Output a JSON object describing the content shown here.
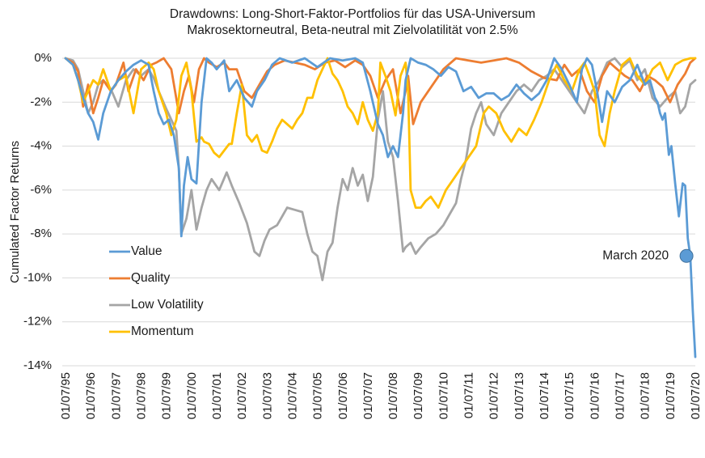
{
  "chart_data": {
    "type": "line",
    "title": "Drawdowns: Long-Short-Faktor-Portfolios für das USA-Universum",
    "subtitle": "Makrosektorneutral, Beta-neutral mit Zielvolatilität von 2.5%",
    "xlabel": "",
    "ylabel": "Cumulated Factor Returns",
    "ylim": [
      -14,
      0
    ],
    "yticks": [
      0,
      -2,
      -4,
      -6,
      -8,
      -10,
      -12,
      -14
    ],
    "ytick_labels": [
      "0%",
      "-2%",
      "-4%",
      "-6%",
      "-8%",
      "-10%",
      "-12%",
      "-14%"
    ],
    "xlim": [
      1995.5,
      2020.5
    ],
    "xtick_values": [
      1995.5,
      1996.5,
      1997.5,
      1998.5,
      1999.5,
      2000.5,
      2001.5,
      2002.5,
      2003.5,
      2004.5,
      2005.5,
      2006.5,
      2007.5,
      2008.5,
      2009.5,
      2010.5,
      2011.5,
      2012.5,
      2013.5,
      2014.5,
      2015.5,
      2016.5,
      2017.5,
      2018.5,
      2019.5,
      2020.5
    ],
    "xtick_labels": [
      "01/07/95",
      "01/07/96",
      "01/07/97",
      "01/07/98",
      "01/07/99",
      "01/07/00",
      "01/07/01",
      "01/07/02",
      "01/07/03",
      "01/07/04",
      "01/07/05",
      "01/07/06",
      "01/07/07",
      "01/07/08",
      "01/07/09",
      "01/07/10",
      "01/07/11",
      "01/07/12",
      "01/07/13",
      "01/07/14",
      "01/07/15",
      "01/07/16",
      "01/07/17",
      "01/07/18",
      "01/07/19",
      "01/07/20"
    ],
    "grid": true,
    "legend_position": "left-center",
    "series": [
      {
        "name": "Value",
        "color": "#5B9BD5",
        "x": [
          1995.5,
          1995.8,
          1996.0,
          1996.2,
          1996.4,
          1996.6,
          1996.8,
          1997.0,
          1997.3,
          1997.6,
          1997.9,
          1998.2,
          1998.5,
          1998.8,
          1999.0,
          1999.2,
          1999.4,
          1999.6,
          1999.8,
          2000.0,
          2000.1,
          2000.2,
          2000.35,
          2000.5,
          2000.7,
          2000.9,
          2001.1,
          2001.3,
          2001.5,
          2001.8,
          2002.0,
          2002.3,
          2002.6,
          2002.9,
          2003.1,
          2003.4,
          2003.7,
          2004.0,
          2004.5,
          2005.0,
          2005.5,
          2006.0,
          2006.5,
          2007.0,
          2007.3,
          2007.6,
          2007.9,
          2008.1,
          2008.3,
          2008.5,
          2008.7,
          2008.9,
          2009.0,
          2009.2,
          2009.5,
          2009.8,
          2010.1,
          2010.4,
          2010.7,
          2011.0,
          2011.3,
          2011.6,
          2011.9,
          2012.2,
          2012.5,
          2012.8,
          2013.1,
          2013.4,
          2013.7,
          2014.0,
          2014.3,
          2014.6,
          2014.9,
          2015.2,
          2015.5,
          2015.8,
          2016.0,
          2016.2,
          2016.4,
          2016.6,
          2016.8,
          2017.0,
          2017.3,
          2017.6,
          2017.9,
          2018.2,
          2018.5,
          2018.7,
          2018.9,
          2019.0,
          2019.1,
          2019.2,
          2019.3,
          2019.45,
          2019.55,
          2019.7,
          2019.85,
          2020.0,
          2020.1,
          2020.2,
          2020.3,
          2020.4,
          2020.5
        ],
        "values": [
          0,
          -0.3,
          -1.0,
          -1.8,
          -2.5,
          -2.9,
          -3.7,
          -2.5,
          -1.5,
          -1.0,
          -0.6,
          -0.3,
          -0.1,
          -0.3,
          -1.5,
          -2.5,
          -3.0,
          -2.8,
          -3.5,
          -5.0,
          -8.1,
          -5.8,
          -4.5,
          -5.5,
          -5.7,
          -2.0,
          0,
          -0.2,
          -0.5,
          -0.1,
          -1.5,
          -1.0,
          -1.8,
          -2.2,
          -1.5,
          -1.0,
          -0.3,
          0,
          -0.2,
          0,
          -0.4,
          0,
          -0.1,
          0,
          -0.2,
          -1.5,
          -3.0,
          -3.5,
          -4.5,
          -4.0,
          -4.5,
          -2.5,
          -1.0,
          0,
          -0.2,
          -0.3,
          -0.5,
          -0.8,
          -0.4,
          -0.6,
          -1.5,
          -1.3,
          -1.8,
          -1.6,
          -1.6,
          -1.9,
          -1.7,
          -1.2,
          -1.6,
          -1.9,
          -1.6,
          -1.0,
          0,
          -0.5,
          -1.2,
          -2.0,
          -0.5,
          0,
          -0.3,
          -1.5,
          -2.9,
          -1.5,
          -2.0,
          -1.3,
          -1.0,
          -0.3,
          -1.2,
          -1.0,
          -1.8,
          -2.0,
          -2.5,
          -2.8,
          -2.5,
          -4.4,
          -4.0,
          -5.7,
          -7.2,
          -5.7,
          -5.8,
          -8.2,
          -9.0,
          -11.5,
          -13.6
        ]
      },
      {
        "name": "Quality",
        "color": "#ED7D31",
        "x": [
          1995.5,
          1995.8,
          1996.0,
          1996.2,
          1996.4,
          1996.6,
          1996.8,
          1997.0,
          1997.3,
          1997.5,
          1997.8,
          1998.0,
          1998.3,
          1998.6,
          1998.9,
          1999.1,
          1999.4,
          1999.7,
          2000.0,
          2000.2,
          2000.4,
          2000.6,
          2000.8,
          2001.0,
          2001.2,
          2001.5,
          2001.8,
          2002.0,
          2002.3,
          2002.6,
          2002.9,
          2003.2,
          2003.5,
          2003.8,
          2004.2,
          2004.6,
          2005.0,
          2005.4,
          2005.8,
          2006.2,
          2006.6,
          2007.0,
          2007.3,
          2007.6,
          2007.9,
          2008.2,
          2008.5,
          2008.8,
          2009.0,
          2009.1,
          2009.3,
          2009.6,
          2009.9,
          2010.2,
          2010.5,
          2010.8,
          2011.0,
          2011.5,
          2012.0,
          2012.5,
          2013.0,
          2013.5,
          2014.0,
          2014.5,
          2015.0,
          2015.3,
          2015.6,
          2015.9,
          2016.2,
          2016.5,
          2016.8,
          2017.1,
          2017.4,
          2017.7,
          2018.0,
          2018.3,
          2018.6,
          2018.9,
          2019.2,
          2019.5,
          2019.8,
          2020.1,
          2020.3,
          2020.5
        ],
        "values": [
          0,
          -0.2,
          -0.6,
          -2.2,
          -1.2,
          -2.5,
          -1.8,
          -1.0,
          -1.5,
          -1.2,
          -0.2,
          -1.5,
          -0.5,
          -1.0,
          -0.3,
          -0.2,
          0,
          -0.5,
          -2.5,
          -1.5,
          -0.8,
          -2.0,
          -0.5,
          0,
          -0.2,
          -0.4,
          -0.2,
          -0.5,
          -0.5,
          -1.5,
          -1.8,
          -1.2,
          -0.6,
          -0.3,
          -0.1,
          -0.2,
          -0.3,
          -0.5,
          -0.2,
          -0.1,
          -0.4,
          -0.1,
          -0.3,
          -0.8,
          -1.8,
          -1.0,
          -0.5,
          -2.5,
          -1.5,
          -0.8,
          -3.0,
          -2.0,
          -1.5,
          -1.0,
          -0.5,
          -0.2,
          0,
          -0.1,
          -0.2,
          -0.1,
          0,
          -0.2,
          -0.6,
          -0.9,
          -1.0,
          -0.3,
          -0.8,
          -0.5,
          -1.5,
          -2.0,
          -0.8,
          -0.2,
          -0.5,
          -0.8,
          -1.0,
          -1.5,
          -0.8,
          -1.0,
          -1.3,
          -2.0,
          -1.2,
          -0.7,
          -0.2,
          0
        ]
      },
      {
        "name": "Low Volatility",
        "color": "#A5A5A5",
        "x": [
          1995.5,
          1995.8,
          1996.0,
          1996.2,
          1996.4,
          1996.6,
          1996.8,
          1997.0,
          1997.3,
          1997.6,
          1997.9,
          1998.2,
          1998.5,
          1998.8,
          1999.0,
          1999.2,
          1999.5,
          1999.7,
          1999.9,
          2000.0,
          2000.1,
          2000.3,
          2000.5,
          2000.7,
          2000.9,
          2001.1,
          2001.3,
          2001.6,
          2001.9,
          2002.1,
          2002.4,
          2002.7,
          2003.0,
          2003.2,
          2003.4,
          2003.6,
          2003.9,
          2004.1,
          2004.3,
          2004.6,
          2004.9,
          2005.1,
          2005.3,
          2005.5,
          2005.7,
          2005.9,
          2006.1,
          2006.3,
          2006.5,
          2006.7,
          2006.9,
          2007.1,
          2007.3,
          2007.5,
          2007.7,
          2007.9,
          2008.1,
          2008.3,
          2008.5,
          2008.7,
          2008.9,
          2009.0,
          2009.2,
          2009.4,
          2009.6,
          2009.9,
          2010.2,
          2010.5,
          2010.8,
          2011.0,
          2011.2,
          2011.4,
          2011.6,
          2011.8,
          2012.0,
          2012.2,
          2012.5,
          2012.8,
          2013.1,
          2013.4,
          2013.7,
          2014.0,
          2014.3,
          2014.6,
          2014.9,
          2015.2,
          2015.5,
          2015.8,
          2016.1,
          2016.4,
          2016.7,
          2017.0,
          2017.3,
          2017.6,
          2017.9,
          2018.2,
          2018.5,
          2018.8,
          2019.1,
          2019.4,
          2019.7,
          2019.9,
          2020.1,
          2020.3,
          2020.5
        ],
        "values": [
          0,
          -0.1,
          -0.5,
          -1.5,
          -2.5,
          -2.0,
          -1.2,
          -1.0,
          -1.4,
          -2.2,
          -1.0,
          -0.5,
          -0.8,
          -0.5,
          -0.9,
          -1.5,
          -2.3,
          -2.8,
          -3.3,
          -5.0,
          -8.0,
          -7.3,
          -6.0,
          -7.8,
          -6.8,
          -6.0,
          -5.5,
          -6.0,
          -5.2,
          -5.8,
          -6.6,
          -7.5,
          -8.8,
          -9.0,
          -8.3,
          -7.8,
          -7.6,
          -7.2,
          -6.8,
          -6.9,
          -7.0,
          -8.0,
          -8.8,
          -9.0,
          -10.1,
          -8.8,
          -8.4,
          -6.8,
          -5.5,
          -6.0,
          -5.0,
          -5.8,
          -5.3,
          -6.5,
          -5.4,
          -2.8,
          -1.5,
          -3.8,
          -4.5,
          -6.5,
          -8.8,
          -8.6,
          -8.4,
          -8.9,
          -8.6,
          -8.2,
          -8.0,
          -7.6,
          -7.0,
          -6.6,
          -5.5,
          -4.6,
          -3.2,
          -2.5,
          -2.0,
          -3.0,
          -3.5,
          -2.5,
          -2.0,
          -1.5,
          -1.2,
          -1.5,
          -1.0,
          -0.8,
          -0.5,
          -1.0,
          -1.5,
          -2.0,
          -2.5,
          -1.5,
          -1.0,
          -0.2,
          0,
          -0.4,
          -0.1,
          -1.0,
          -0.5,
          -1.8,
          -2.2,
          -1.8,
          -1.5,
          -2.5,
          -2.2,
          -1.2,
          -1.0
        ]
      },
      {
        "name": "Momentum",
        "color": "#FFC000",
        "x": [
          1995.5,
          1995.8,
          1996.0,
          1996.2,
          1996.4,
          1996.6,
          1996.8,
          1997.0,
          1997.3,
          1997.6,
          1997.9,
          1998.2,
          1998.5,
          1998.8,
          1999.0,
          1999.2,
          1999.5,
          1999.7,
          1999.9,
          2000.1,
          2000.3,
          2000.5,
          2000.7,
          2000.9,
          2001.0,
          2001.2,
          2001.4,
          2001.6,
          2001.8,
          2002.0,
          2002.1,
          2002.3,
          2002.5,
          2002.7,
          2002.9,
          2003.1,
          2003.3,
          2003.5,
          2003.7,
          2003.9,
          2004.1,
          2004.3,
          2004.5,
          2004.7,
          2004.9,
          2005.1,
          2005.3,
          2005.5,
          2005.7,
          2005.9,
          2006.1,
          2006.3,
          2006.5,
          2006.7,
          2006.9,
          2007.1,
          2007.3,
          2007.5,
          2007.7,
          2007.9,
          2008.0,
          2008.2,
          2008.4,
          2008.6,
          2008.8,
          2009.0,
          2009.1,
          2009.2,
          2009.4,
          2009.6,
          2009.8,
          2010.0,
          2010.3,
          2010.6,
          2010.9,
          2011.2,
          2011.5,
          2011.8,
          2012.1,
          2012.3,
          2012.6,
          2012.9,
          2013.2,
          2013.5,
          2013.8,
          2014.1,
          2014.4,
          2014.7,
          2015.0,
          2015.3,
          2015.6,
          2015.9,
          2016.1,
          2016.3,
          2016.5,
          2016.7,
          2016.9,
          2017.1,
          2017.3,
          2017.6,
          2017.9,
          2018.2,
          2018.5,
          2018.8,
          2019.1,
          2019.4,
          2019.7,
          2020.0,
          2020.3,
          2020.5
        ],
        "values": [
          0,
          -0.3,
          -1.0,
          -2.0,
          -1.5,
          -1.0,
          -1.2,
          -0.5,
          -1.5,
          -1.0,
          -0.8,
          -2.5,
          -0.5,
          -0.2,
          -0.5,
          -1.5,
          -2.5,
          -3.5,
          -2.8,
          -0.8,
          -0.2,
          -1.5,
          -3.8,
          -3.6,
          -3.8,
          -3.9,
          -4.3,
          -4.5,
          -4.2,
          -3.9,
          -3.9,
          -2.5,
          -1.2,
          -3.5,
          -3.8,
          -3.5,
          -4.2,
          -4.3,
          -3.8,
          -3.2,
          -2.8,
          -3.0,
          -3.2,
          -2.8,
          -2.5,
          -1.8,
          -1.8,
          -1.0,
          -0.5,
          0,
          -0.7,
          -1.0,
          -1.5,
          -2.2,
          -2.5,
          -3.0,
          -2.0,
          -2.8,
          -3.3,
          -2.5,
          -0.2,
          -0.8,
          -1.5,
          -2.6,
          -0.8,
          -0.2,
          -1.5,
          -6.0,
          -6.8,
          -6.8,
          -6.5,
          -6.3,
          -6.8,
          -6.0,
          -5.5,
          -5.0,
          -4.5,
          -4.0,
          -2.5,
          -2.2,
          -2.5,
          -3.3,
          -3.8,
          -3.2,
          -3.5,
          -2.8,
          -2.0,
          -1.0,
          -0.3,
          -1.0,
          -1.5,
          -0.5,
          -0.2,
          -0.8,
          -1.5,
          -3.5,
          -4.0,
          -2.5,
          -1.5,
          -0.3,
          0,
          -0.8,
          -1.2,
          -0.5,
          -0.2,
          -1.0,
          -0.3,
          -0.1,
          0,
          0
        ]
      }
    ],
    "annotations": [
      {
        "text": "March 2020",
        "x": 2020.15,
        "y": -9.0,
        "series": "Value",
        "marker": "circle"
      }
    ]
  }
}
